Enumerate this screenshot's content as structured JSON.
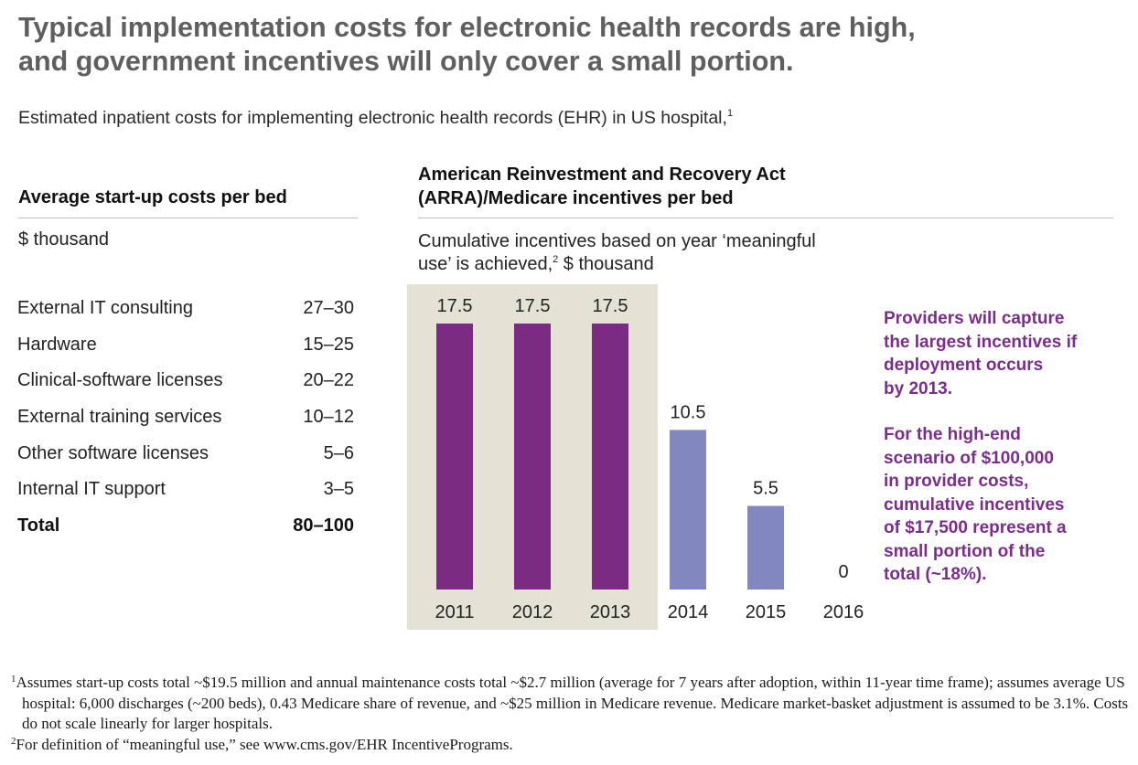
{
  "title_line1": "Typical implementation costs for electronic health records are high,",
  "title_line2": "and government incentives will only cover a small portion.",
  "subtitle": "Estimated inpatient costs for implementing electronic health records (EHR) in US hospital,",
  "subtitle_ref": "1",
  "left": {
    "heading": "Average start-up costs per bed",
    "unit": "$ thousand",
    "rows": [
      {
        "label": "External IT consulting",
        "value": "27–30"
      },
      {
        "label": "Hardware",
        "value": "15–25"
      },
      {
        "label": "Clinical-software licenses",
        "value": "20–22"
      },
      {
        "label": "External training services",
        "value": "10–12"
      },
      {
        "label": "Other software licenses",
        "value": "5–6"
      },
      {
        "label": "Internal IT support",
        "value": "3–5"
      }
    ],
    "total": {
      "label": "Total",
      "value": "80–100"
    }
  },
  "right": {
    "heading_line1": "American Reinvestment and Recovery Act",
    "heading_line2": "(ARRA)/Medicare incentives per bed",
    "unit_line1": "Cumulative incentives based on year ‘meaningful",
    "unit_line2a": "use’ is achieved,",
    "unit_ref": "2",
    "unit_line2b": " $ thousand"
  },
  "chart_data": {
    "type": "bar",
    "categories": [
      "2011",
      "2012",
      "2013",
      "2014",
      "2015",
      "2016"
    ],
    "values": [
      17.5,
      17.5,
      17.5,
      10.5,
      5.5,
      0
    ],
    "value_labels": [
      "17.5",
      "17.5",
      "17.5",
      "10.5",
      "5.5",
      "0"
    ],
    "highlighted_categories": [
      "2011",
      "2012",
      "2013"
    ],
    "ylim": [
      0,
      17.5
    ],
    "grid": false,
    "xlabel": "",
    "ylabel": "",
    "colors": {
      "highlight": "#7b2b82",
      "normal": "#8287c0",
      "highlight_bg": "#e4e2d5"
    }
  },
  "notes": {
    "note1": [
      "Providers will capture",
      "the largest incentives if",
      "deployment occurs",
      "by 2013."
    ],
    "note2": [
      "For the high-end",
      "scenario of $100,000",
      "in provider costs,",
      "cumulative incentives",
      "of $17,500 represent a",
      "small portion of the",
      "total (~18%)."
    ]
  },
  "footnotes": {
    "fn1_ref": "1",
    "fn1": "Assumes start-up costs total ~$19.5 million and annual maintenance costs total ~$2.7 million (average for 7 years after adoption, within 11-year time frame); assumes average US hospital: 6,000 discharges (~200 beds), 0.43 Medicare share of revenue, and ~$25 million in Medicare revenue. Medicare market-basket adjustment is assumed to be 3.1%. Costs do not scale linearly for larger hospitals.",
    "fn2_ref": "2",
    "fn2": "For definition of “meaningful use,” see www.cms.gov/EHR IncentivePrograms."
  }
}
